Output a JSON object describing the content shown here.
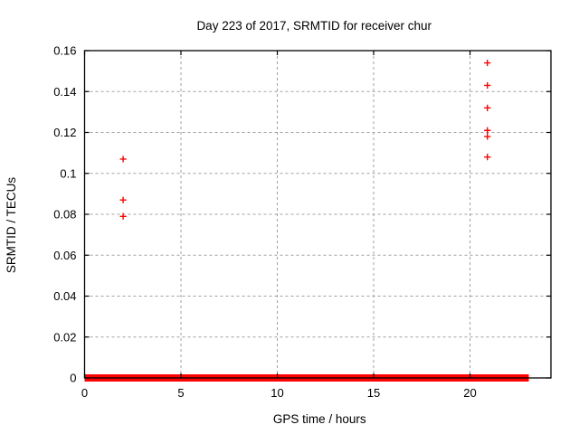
{
  "chart_data": {
    "type": "scatter",
    "title": "Day 223 of 2017, SRMTID for receiver chur",
    "xlabel": "GPS time / hours",
    "ylabel": "SRMTID / TECUs",
    "xlim": [
      0,
      24.2
    ],
    "ylim": [
      0,
      0.16
    ],
    "xticks": [
      {
        "value": 0,
        "label": "0"
      },
      {
        "value": 5,
        "label": "5"
      },
      {
        "value": 10,
        "label": "10"
      },
      {
        "value": 15,
        "label": "15"
      },
      {
        "value": 20,
        "label": "20"
      }
    ],
    "yticks": [
      {
        "value": 0,
        "label": "0"
      },
      {
        "value": 0.02,
        "label": "0.02"
      },
      {
        "value": 0.04,
        "label": "0.04"
      },
      {
        "value": 0.06,
        "label": "0.06"
      },
      {
        "value": 0.08,
        "label": "0.08"
      },
      {
        "value": 0.1,
        "label": "0.1"
      },
      {
        "value": 0.12,
        "label": "0.12"
      },
      {
        "value": 0.14,
        "label": "0.14"
      },
      {
        "value": 0.16,
        "label": "0.16"
      }
    ],
    "grid": true,
    "legend": "none",
    "marker": "plus",
    "colors": {
      "marker": "#ff0000",
      "grid": "#a0a0a0",
      "border": "#000000",
      "background": "#ffffff"
    },
    "series": [
      {
        "name": "SRMTID",
        "points": [
          [
            2.0,
            0.107
          ],
          [
            2.0,
            0.087
          ],
          [
            2.0,
            0.079
          ],
          [
            20.9,
            0.154
          ],
          [
            20.9,
            0.143
          ],
          [
            20.9,
            0.132
          ],
          [
            20.9,
            0.121
          ],
          [
            20.9,
            0.118
          ],
          [
            20.9,
            0.108
          ]
        ]
      }
    ],
    "baseline_band": {
      "y": 0,
      "x_start": 0,
      "x_end": 23.05,
      "description": "dense overlapping plus markers at SRMTID ~ 0 for all epochs from 0 to ~23 h"
    }
  }
}
